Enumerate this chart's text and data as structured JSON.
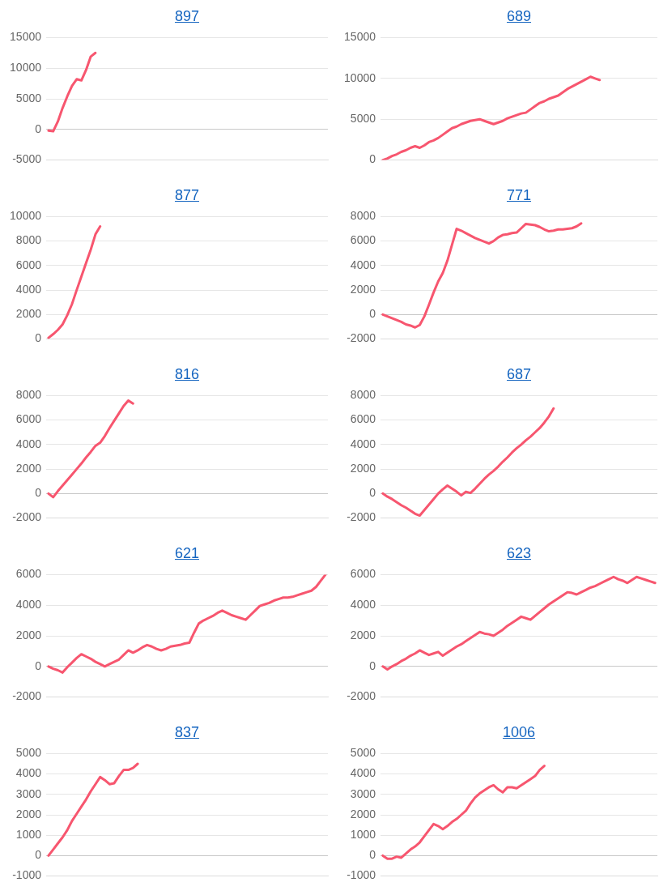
{
  "chart_data": [
    {
      "type": "line",
      "title": "897",
      "categories": [
        null,
        null,
        null,
        null,
        null,
        null,
        null,
        null,
        null,
        null,
        null,
        null,
        null,
        null,
        null,
        null,
        null,
        null,
        null,
        null,
        null,
        null,
        null,
        null,
        null,
        null,
        null,
        null,
        null,
        null,
        null,
        null,
        null,
        null,
        null,
        null,
        null,
        null,
        null,
        null,
        null,
        null,
        null,
        null,
        null,
        null,
        null,
        null,
        null,
        null,
        null,
        null,
        null,
        null,
        null,
        null,
        null,
        null,
        null,
        null
      ],
      "values": [
        -200,
        -300,
        1300,
        3500,
        5400,
        7100,
        8200,
        8000,
        9700,
        11900,
        12500,
        null,
        null,
        null,
        null,
        null,
        null,
        null,
        null,
        null,
        null,
        null,
        null,
        null,
        null,
        null,
        null,
        null,
        null,
        null,
        null,
        null,
        null,
        null,
        null,
        null,
        null,
        null,
        null,
        null,
        null,
        null,
        null,
        null,
        null,
        null,
        null,
        null,
        null,
        null,
        null,
        null,
        null,
        null,
        null,
        null,
        null,
        null,
        null,
        null
      ],
      "color": "#f7566f",
      "ylim": [
        -5000,
        15000
      ],
      "yticks": [
        -5000,
        0,
        5000,
        10000,
        15000
      ],
      "grid": "y",
      "tick_labels": "y",
      "legend": false
    },
    {
      "type": "line",
      "title": "689",
      "categories": [
        null,
        null,
        null,
        null,
        null,
        null,
        null,
        null,
        null,
        null,
        null,
        null,
        null,
        null,
        null,
        null,
        null,
        null,
        null,
        null,
        null,
        null,
        null,
        null,
        null,
        null,
        null,
        null,
        null,
        null,
        null,
        null,
        null,
        null,
        null,
        null,
        null,
        null,
        null,
        null,
        null,
        null,
        null,
        null,
        null,
        null,
        null,
        null,
        null,
        null,
        null,
        null,
        null,
        null,
        null,
        null,
        null,
        null,
        null,
        null
      ],
      "values": [
        0,
        200,
        500,
        700,
        1000,
        1200,
        1500,
        1700,
        1500,
        1800,
        2200,
        2400,
        2700,
        3100,
        3500,
        3900,
        4100,
        4400,
        4600,
        4800,
        4900,
        5000,
        4800,
        4600,
        4400,
        4600,
        4800,
        5100,
        5300,
        5500,
        5700,
        5800,
        6200,
        6600,
        7000,
        7200,
        7500,
        7700,
        7900,
        8300,
        8700,
        9000,
        9300,
        9600,
        9900,
        10200,
        10000,
        9800,
        null,
        null,
        null,
        null,
        null,
        null,
        null,
        null,
        null,
        null,
        null,
        null
      ],
      "color": "#f7566f",
      "ylim": [
        0,
        15000
      ],
      "yticks": [
        0,
        5000,
        10000,
        15000
      ],
      "grid": "y",
      "tick_labels": "y",
      "legend": false
    },
    {
      "type": "line",
      "title": "877",
      "categories": [
        null,
        null,
        null,
        null,
        null,
        null,
        null,
        null,
        null,
        null,
        null,
        null,
        null,
        null,
        null,
        null,
        null,
        null,
        null,
        null,
        null,
        null,
        null,
        null,
        null,
        null,
        null,
        null,
        null,
        null,
        null,
        null,
        null,
        null,
        null,
        null,
        null,
        null,
        null,
        null,
        null,
        null,
        null,
        null,
        null,
        null,
        null,
        null,
        null,
        null,
        null,
        null,
        null,
        null,
        null,
        null,
        null,
        null,
        null,
        null
      ],
      "values": [
        100,
        400,
        750,
        1200,
        1950,
        2850,
        4000,
        5100,
        6200,
        7300,
        8550,
        9200,
        null,
        null,
        null,
        null,
        null,
        null,
        null,
        null,
        null,
        null,
        null,
        null,
        null,
        null,
        null,
        null,
        null,
        null,
        null,
        null,
        null,
        null,
        null,
        null,
        null,
        null,
        null,
        null,
        null,
        null,
        null,
        null,
        null,
        null,
        null,
        null,
        null,
        null,
        null,
        null,
        null,
        null,
        null,
        null,
        null,
        null,
        null,
        null
      ],
      "color": "#f7566f",
      "ylim": [
        0,
        10000
      ],
      "yticks": [
        0,
        2000,
        4000,
        6000,
        8000,
        10000
      ],
      "grid": "y",
      "tick_labels": "y",
      "legend": false
    },
    {
      "type": "line",
      "title": "771",
      "categories": [
        null,
        null,
        null,
        null,
        null,
        null,
        null,
        null,
        null,
        null,
        null,
        null,
        null,
        null,
        null,
        null,
        null,
        null,
        null,
        null,
        null,
        null,
        null,
        null,
        null,
        null,
        null,
        null,
        null,
        null,
        null,
        null,
        null,
        null,
        null,
        null,
        null,
        null,
        null,
        null,
        null,
        null,
        null,
        null,
        null,
        null,
        null,
        null,
        null,
        null,
        null,
        null,
        null,
        null,
        null,
        null,
        null,
        null,
        null,
        null
      ],
      "values": [
        0,
        -150,
        -300,
        -450,
        -600,
        -800,
        -900,
        -1050,
        -850,
        -150,
        800,
        1800,
        2700,
        3400,
        4400,
        5700,
        7000,
        6850,
        6650,
        6450,
        6250,
        6100,
        5950,
        5800,
        6000,
        6300,
        6500,
        6550,
        6650,
        6700,
        7050,
        7400,
        7350,
        7300,
        7150,
        6950,
        6800,
        6850,
        6950,
        6950,
        7000,
        7050,
        7200,
        7450,
        null,
        null,
        null,
        null,
        null,
        null,
        null,
        null,
        null,
        null,
        null,
        null,
        null,
        null,
        null,
        null
      ],
      "color": "#f7566f",
      "ylim": [
        -2000,
        8000
      ],
      "yticks": [
        -2000,
        0,
        2000,
        4000,
        6000,
        8000
      ],
      "grid": "y",
      "tick_labels": "y",
      "legend": false
    },
    {
      "type": "line",
      "title": "816",
      "categories": [
        null,
        null,
        null,
        null,
        null,
        null,
        null,
        null,
        null,
        null,
        null,
        null,
        null,
        null,
        null,
        null,
        null,
        null,
        null,
        null,
        null,
        null,
        null,
        null,
        null,
        null,
        null,
        null,
        null,
        null,
        null,
        null,
        null,
        null,
        null,
        null,
        null,
        null,
        null,
        null,
        null,
        null,
        null,
        null,
        null,
        null,
        null,
        null,
        null,
        null,
        null,
        null,
        null,
        null,
        null,
        null,
        null,
        null,
        null,
        null
      ],
      "values": [
        0,
        -300,
        200,
        650,
        1100,
        1550,
        2000,
        2450,
        2950,
        3400,
        3900,
        4150,
        4700,
        5350,
        5950,
        6550,
        7150,
        7600,
        7350,
        null,
        null,
        null,
        null,
        null,
        null,
        null,
        null,
        null,
        null,
        null,
        null,
        null,
        null,
        null,
        null,
        null,
        null,
        null,
        null,
        null,
        null,
        null,
        null,
        null,
        null,
        null,
        null,
        null,
        null,
        null,
        null,
        null,
        null,
        null,
        null,
        null,
        null,
        null,
        null,
        null
      ],
      "color": "#f7566f",
      "ylim": [
        -2000,
        8000
      ],
      "yticks": [
        -2000,
        0,
        2000,
        4000,
        6000,
        8000
      ],
      "grid": "y",
      "tick_labels": "y",
      "legend": false
    },
    {
      "type": "line",
      "title": "687",
      "categories": [
        null,
        null,
        null,
        null,
        null,
        null,
        null,
        null,
        null,
        null,
        null,
        null,
        null,
        null,
        null,
        null,
        null,
        null,
        null,
        null,
        null,
        null,
        null,
        null,
        null,
        null,
        null,
        null,
        null,
        null,
        null,
        null,
        null,
        null,
        null,
        null,
        null,
        null,
        null,
        null,
        null,
        null,
        null,
        null,
        null,
        null,
        null,
        null,
        null,
        null,
        null,
        null,
        null,
        null,
        null,
        null,
        null,
        null,
        null,
        null
      ],
      "values": [
        0,
        -250,
        -450,
        -700,
        -950,
        -1150,
        -1400,
        -1650,
        -1800,
        -1350,
        -900,
        -450,
        0,
        350,
        650,
        400,
        150,
        -150,
        150,
        50,
        400,
        800,
        1200,
        1550,
        1850,
        2200,
        2600,
        2950,
        3350,
        3700,
        4000,
        4350,
        4650,
        5000,
        5350,
        5800,
        6300,
        6950,
        null,
        null,
        null,
        null,
        null,
        null,
        null,
        null,
        null,
        null,
        null,
        null,
        null,
        null,
        null,
        null,
        null,
        null,
        null,
        null,
        null,
        null
      ],
      "color": "#f7566f",
      "ylim": [
        -2000,
        8000
      ],
      "yticks": [
        -2000,
        0,
        2000,
        4000,
        6000,
        8000
      ],
      "grid": "y",
      "tick_labels": "y",
      "legend": false
    },
    {
      "type": "line",
      "title": "621",
      "categories": [
        null,
        null,
        null,
        null,
        null,
        null,
        null,
        null,
        null,
        null,
        null,
        null,
        null,
        null,
        null,
        null,
        null,
        null,
        null,
        null,
        null,
        null,
        null,
        null,
        null,
        null,
        null,
        null,
        null,
        null,
        null,
        null,
        null,
        null,
        null,
        null,
        null,
        null,
        null,
        null,
        null,
        null,
        null,
        null,
        null,
        null,
        null,
        null,
        null,
        null,
        null,
        null,
        null,
        null,
        null,
        null,
        null,
        null,
        null,
        null
      ],
      "values": [
        0,
        -150,
        -250,
        -400,
        -50,
        250,
        550,
        800,
        650,
        500,
        300,
        150,
        0,
        150,
        300,
        450,
        750,
        1050,
        900,
        1050,
        1250,
        1400,
        1300,
        1150,
        1050,
        1150,
        1300,
        1350,
        1400,
        1500,
        1550,
        2200,
        2800,
        3000,
        3150,
        3300,
        3500,
        3650,
        3500,
        3350,
        3250,
        3150,
        3050,
        3350,
        3650,
        3950,
        4050,
        4150,
        4300,
        4400,
        4500,
        4500,
        4550,
        4650,
        4750,
        4850,
        4950,
        5200,
        5600,
        6000
      ],
      "color": "#f7566f",
      "ylim": [
        -2000,
        6000
      ],
      "yticks": [
        -2000,
        0,
        2000,
        4000,
        6000
      ],
      "grid": "y",
      "tick_labels": "y",
      "legend": false
    },
    {
      "type": "line",
      "title": "623",
      "categories": [
        null,
        null,
        null,
        null,
        null,
        null,
        null,
        null,
        null,
        null,
        null,
        null,
        null,
        null,
        null,
        null,
        null,
        null,
        null,
        null,
        null,
        null,
        null,
        null,
        null,
        null,
        null,
        null,
        null,
        null,
        null,
        null,
        null,
        null,
        null,
        null,
        null,
        null,
        null,
        null,
        null,
        null,
        null,
        null,
        null,
        null,
        null,
        null,
        null,
        null,
        null,
        null,
        null,
        null,
        null,
        null,
        null,
        null,
        null,
        null
      ],
      "values": [
        0,
        -200,
        0,
        150,
        350,
        500,
        700,
        850,
        1050,
        900,
        750,
        850,
        950,
        700,
        900,
        1100,
        1300,
        1450,
        1650,
        1850,
        2050,
        2250,
        2150,
        2100,
        2000,
        2200,
        2400,
        2650,
        2850,
        3050,
        3250,
        3150,
        3050,
        3300,
        3550,
        3800,
        4050,
        4250,
        4450,
        4650,
        4850,
        4800,
        4700,
        4850,
        5000,
        5150,
        5250,
        5400,
        5550,
        5700,
        5850,
        5700,
        5600,
        5450,
        5650,
        5850,
        5750,
        5650,
        5550,
        5450
      ],
      "color": "#f7566f",
      "ylim": [
        -2000,
        6000
      ],
      "yticks": [
        -2000,
        0,
        2000,
        4000,
        6000
      ],
      "grid": "y",
      "tick_labels": "y",
      "legend": false
    },
    {
      "type": "line",
      "title": "837",
      "categories": [
        null,
        null,
        null,
        null,
        null,
        null,
        null,
        null,
        null,
        null,
        null,
        null,
        null,
        null,
        null,
        null,
        null,
        null,
        null,
        null,
        null,
        null,
        null,
        null,
        null,
        null,
        null,
        null,
        null,
        null,
        null,
        null,
        null,
        null,
        null,
        null,
        null,
        null,
        null,
        null,
        null,
        null,
        null,
        null,
        null,
        null,
        null,
        null,
        null,
        null,
        null,
        null,
        null,
        null,
        null,
        null,
        null,
        null,
        null,
        null
      ],
      "values": [
        0,
        300,
        600,
        900,
        1250,
        1700,
        2050,
        2400,
        2750,
        3150,
        3500,
        3850,
        3700,
        3500,
        3550,
        3900,
        4200,
        4200,
        4300,
        4500,
        null,
        null,
        null,
        null,
        null,
        null,
        null,
        null,
        null,
        null,
        null,
        null,
        null,
        null,
        null,
        null,
        null,
        null,
        null,
        null,
        null,
        null,
        null,
        null,
        null,
        null,
        null,
        null,
        null,
        null,
        null,
        null,
        null,
        null,
        null,
        null,
        null,
        null,
        null,
        null
      ],
      "color": "#f7566f",
      "ylim": [
        -1000,
        5000
      ],
      "yticks": [
        -1000,
        0,
        1000,
        2000,
        3000,
        4000,
        5000
      ],
      "grid": "y",
      "tick_labels": "y",
      "legend": false
    },
    {
      "type": "line",
      "title": "1006",
      "categories": [
        null,
        null,
        null,
        null,
        null,
        null,
        null,
        null,
        null,
        null,
        null,
        null,
        null,
        null,
        null,
        null,
        null,
        null,
        null,
        null,
        null,
        null,
        null,
        null,
        null,
        null,
        null,
        null,
        null,
        null,
        null,
        null,
        null,
        null,
        null,
        null,
        null,
        null,
        null,
        null,
        null,
        null,
        null,
        null,
        null,
        null,
        null,
        null,
        null,
        null,
        null,
        null,
        null,
        null,
        null,
        null,
        null,
        null,
        null,
        null
      ],
      "values": [
        0,
        -150,
        -150,
        -50,
        -100,
        100,
        300,
        450,
        650,
        950,
        1250,
        1550,
        1450,
        1300,
        1450,
        1650,
        1800,
        2000,
        2200,
        2550,
        2850,
        3050,
        3200,
        3350,
        3450,
        3250,
        3100,
        3350,
        3350,
        3300,
        3450,
        3600,
        3750,
        3900,
        4200,
        4400,
        null,
        null,
        null,
        null,
        null,
        null,
        null,
        null,
        null,
        null,
        null,
        null,
        null,
        null,
        null,
        null,
        null,
        null,
        null,
        null,
        null,
        null,
        null,
        null
      ],
      "color": "#f7566f",
      "ylim": [
        -1000,
        5000
      ],
      "yticks": [
        -1000,
        0,
        1000,
        2000,
        3000,
        4000,
        5000
      ],
      "grid": "y",
      "tick_labels": "y",
      "legend": false
    }
  ]
}
